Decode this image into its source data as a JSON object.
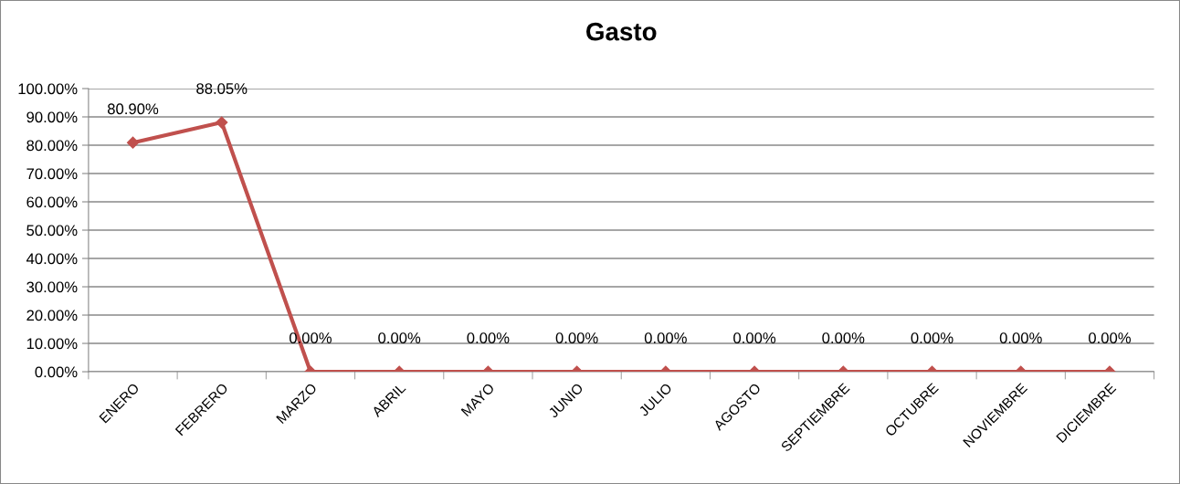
{
  "chart_data": {
    "type": "line",
    "title": "Gasto",
    "categories": [
      "ENERO",
      "FEBRERO",
      "MARZO",
      "ABRIL",
      "MAYO",
      "JUNIO",
      "JULIO",
      "AGOSTO",
      "SEPTIEMBRE",
      "OCTUBRE",
      "NOVIEMBRE",
      "DICIEMBRE"
    ],
    "series": [
      {
        "color": "#c0504d",
        "values": [
          80.9,
          88.05,
          0,
          0,
          0,
          0,
          0,
          0,
          0,
          0,
          0,
          0
        ],
        "value_labels": [
          "80.90%",
          "88.05%",
          "0.00%",
          "0.00%",
          "0.00%",
          "0.00%",
          "0.00%",
          "0.00%",
          "0.00%",
          "0.00%",
          "0.00%",
          "0.00%"
        ]
      }
    ],
    "ylim": [
      0,
      100
    ],
    "yticks": [
      {
        "value": 0,
        "label": "0.00%"
      },
      {
        "value": 10,
        "label": "10.00%"
      },
      {
        "value": 20,
        "label": "20.00%"
      },
      {
        "value": 30,
        "label": "30.00%"
      },
      {
        "value": 40,
        "label": "40.00%"
      },
      {
        "value": 50,
        "label": "50.00%"
      },
      {
        "value": 60,
        "label": "60.00%"
      },
      {
        "value": 70,
        "label": "70.00%"
      },
      {
        "value": 80,
        "label": "80.00%"
      },
      {
        "value": 90,
        "label": "90.00%"
      },
      {
        "value": 100,
        "label": "100.00%"
      }
    ],
    "grid": "y",
    "legend": false,
    "marker": "diamond",
    "line_style": "solid"
  }
}
